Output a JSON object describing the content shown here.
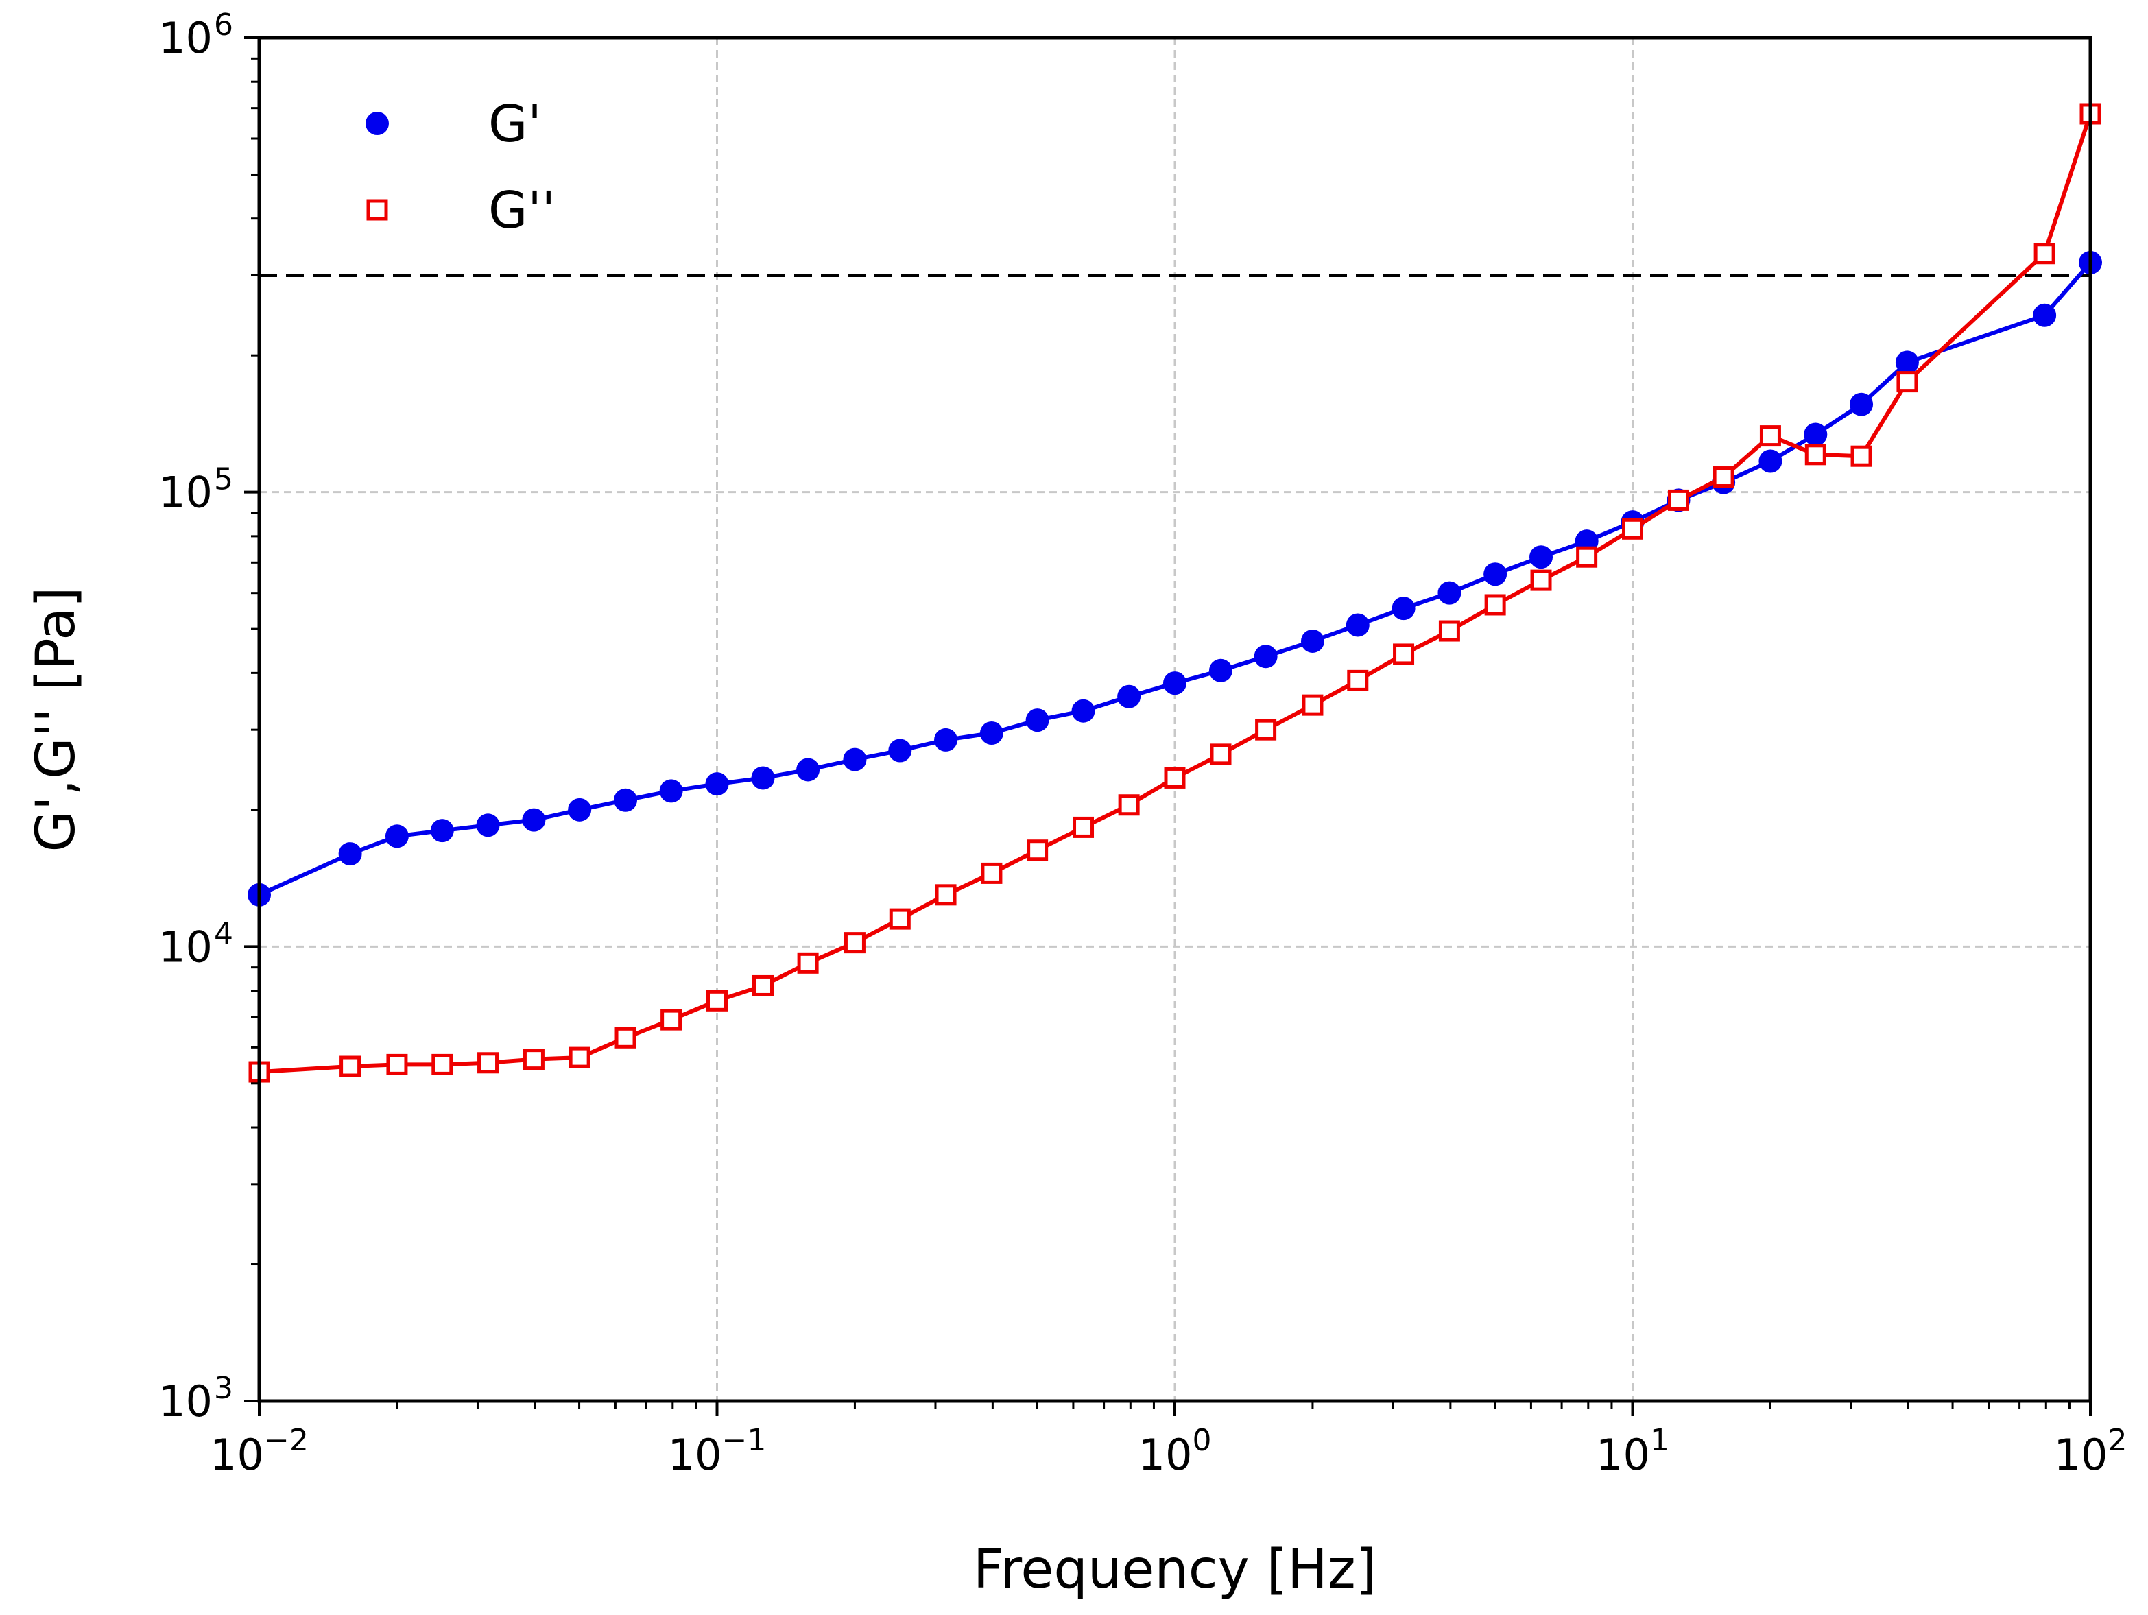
{
  "chart_data": {
    "type": "line",
    "xscale": "log",
    "yscale": "log",
    "xlabel": "Frequency [Hz]",
    "ylabel": "G',G'' [Pa]",
    "xlim": [
      0.01,
      100
    ],
    "ylim": [
      1000,
      1000000
    ],
    "grid": true,
    "legend_position": "top-left",
    "x_ticks": [
      {
        "base": "10",
        "exp": "−2"
      },
      {
        "base": "10",
        "exp": "−1"
      },
      {
        "base": "10",
        "exp": "0"
      },
      {
        "base": "10",
        "exp": "1"
      },
      {
        "base": "10",
        "exp": "2"
      }
    ],
    "y_ticks": [
      {
        "base": "10",
        "exp": "3"
      },
      {
        "base": "10",
        "exp": "4"
      },
      {
        "base": "10",
        "exp": "5"
      },
      {
        "base": "10",
        "exp": "6"
      }
    ],
    "reference_line": {
      "y": 300000,
      "style": "dashed",
      "color": "#000000"
    },
    "series": [
      {
        "name": "G'",
        "color": "#0000ee",
        "marker": "filled-circle",
        "x": [
          0.01,
          0.0158,
          0.02,
          0.0251,
          0.0316,
          0.0398,
          0.0501,
          0.0631,
          0.0794,
          0.1,
          0.126,
          0.158,
          0.2,
          0.251,
          0.316,
          0.398,
          0.501,
          0.631,
          0.794,
          1.0,
          1.26,
          1.58,
          2.0,
          2.51,
          3.16,
          3.98,
          5.01,
          6.31,
          7.94,
          10.0,
          12.6,
          15.8,
          20.0,
          25.1,
          31.6,
          39.8,
          79.4,
          100
        ],
        "values": [
          13000,
          16000,
          17500,
          18000,
          18500,
          19000,
          20000,
          21000,
          22000,
          22800,
          23500,
          24500,
          25800,
          27000,
          28500,
          29500,
          31500,
          33000,
          35500,
          38000,
          40500,
          43500,
          47000,
          51000,
          55500,
          60000,
          66000,
          72000,
          78000,
          86000,
          96000,
          105000,
          117000,
          134000,
          156000,
          193000,
          245000,
          320000
        ]
      },
      {
        "name": "G''",
        "color": "#ee0000",
        "marker": "open-square",
        "x": [
          0.01,
          0.0158,
          0.02,
          0.0251,
          0.0316,
          0.0398,
          0.0501,
          0.0631,
          0.0794,
          0.1,
          0.126,
          0.158,
          0.2,
          0.251,
          0.316,
          0.398,
          0.501,
          0.631,
          0.794,
          1.0,
          1.26,
          1.58,
          2.0,
          2.51,
          3.16,
          3.98,
          5.01,
          6.31,
          7.94,
          10.0,
          12.6,
          15.8,
          20.0,
          25.1,
          31.6,
          39.8,
          79.4,
          100
        ],
        "values": [
          5300,
          5450,
          5500,
          5500,
          5550,
          5650,
          5700,
          6300,
          6900,
          7600,
          8200,
          9200,
          10200,
          11500,
          13000,
          14500,
          16300,
          18300,
          20500,
          23500,
          26500,
          30000,
          34000,
          38500,
          44000,
          49500,
          56500,
          64000,
          72000,
          83000,
          96000,
          108000,
          133000,
          121000,
          120000,
          175000,
          335000,
          680000
        ]
      }
    ]
  }
}
